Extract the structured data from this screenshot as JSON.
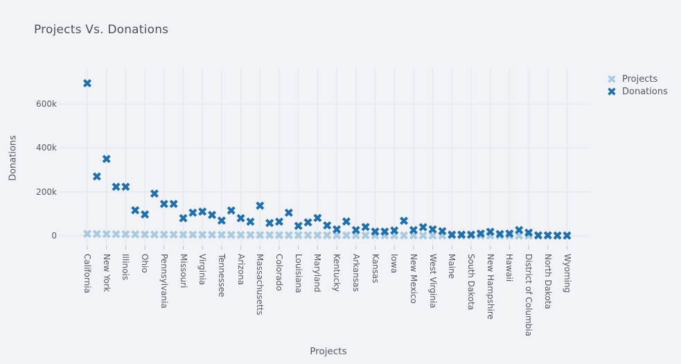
{
  "title": "Projects Vs. Donations",
  "colors": {
    "background": "#f2f3f7",
    "grid": "#e7e8ee",
    "tick_mark": "#b9bdc6",
    "text": "#54585f",
    "title_text": "#4c5158",
    "projects_marker": "#a8cbe0",
    "donations_marker": "#1d6fad"
  },
  "legend": {
    "items": [
      {
        "label": "Projects",
        "color": "#a8cbe0"
      },
      {
        "label": "Donations",
        "color": "#1d6fad"
      }
    ]
  },
  "chart_data": {
    "type": "scatter",
    "marker_symbol": "x",
    "title": "Projects Vs. Donations",
    "xlabel": "Projects",
    "ylabel": "Donations",
    "grid": true,
    "legend_position": "right",
    "ylim": [
      -47400,
      764600
    ],
    "y_ticks": [
      {
        "label": "0",
        "value": 0
      },
      {
        "label": "200k",
        "value": 200000
      },
      {
        "label": "400k",
        "value": 400000
      },
      {
        "label": "600k",
        "value": 600000
      }
    ],
    "categories": [
      "California",
      "",
      "New York",
      "",
      "Illinois",
      "",
      "Ohio",
      "",
      "Pennsylvania",
      "",
      "Missouri",
      "",
      "Virginia",
      "",
      "Tennessee",
      "",
      "Arizona",
      "",
      "Massachusetts",
      "",
      "Colorado",
      "",
      "Louisiana",
      "",
      "Maryland",
      "",
      "Kentucky",
      "",
      "Arkansas",
      "",
      "Kansas",
      "",
      "Iowa",
      "",
      "New Mexico",
      "",
      "West Virginia",
      "",
      "Maine",
      "",
      "South Dakota",
      "",
      "New Hampshire",
      "",
      "Hawaii",
      "",
      "District of Columbia",
      "",
      "North Dakota",
      "",
      "Wyoming"
    ],
    "series": [
      {
        "name": "Projects",
        "values": [
          9000,
          8200,
          7600,
          7000,
          6600,
          6200,
          5800,
          5500,
          5200,
          5000,
          4800,
          4600,
          4400,
          4200,
          4000,
          3800,
          3600,
          3400,
          3200,
          3000,
          2850,
          2700,
          2550,
          2400,
          2250,
          2100,
          2000,
          1900,
          1800,
          1700,
          1600,
          1500,
          1400,
          1300,
          1200,
          1100,
          1000,
          950,
          900,
          850,
          800,
          750,
          700,
          650,
          600,
          550,
          500,
          450,
          400,
          350,
          300
        ]
      },
      {
        "name": "Donations",
        "values": [
          695000,
          270000,
          350000,
          223000,
          223000,
          116000,
          97000,
          192000,
          145000,
          145000,
          80000,
          105000,
          110000,
          95000,
          69000,
          115000,
          80000,
          64000,
          137000,
          58000,
          64000,
          105000,
          45000,
          61000,
          81000,
          47000,
          29000,
          65000,
          26000,
          40000,
          19000,
          19000,
          24000,
          68000,
          26000,
          39000,
          29000,
          21000,
          5000,
          5000,
          5000,
          10000,
          18000,
          8000,
          10000,
          26000,
          14000,
          2000,
          2000,
          1000,
          1000
        ]
      }
    ]
  }
}
